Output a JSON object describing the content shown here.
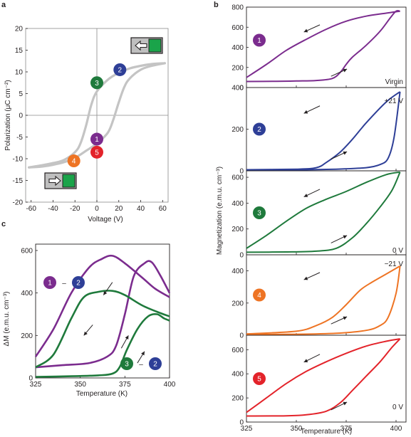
{
  "colors": {
    "1": "#7b2c8e",
    "2": "#2e3f97",
    "3": "#1f7a3c",
    "4": "#ee7424",
    "5": "#e3232a",
    "loop_gray": "#c4c4c4",
    "axis": "#231f20",
    "box_green": "#1aa44a",
    "box_gray": "#bfbfbf",
    "arrow": "#231f20"
  },
  "panel_letters": [
    "a",
    "b",
    "c"
  ],
  "icons": {
    "state_box_left": "left-arrow-in-box-with-green-block",
    "state_box_right": "right-arrow-in-box-with-green-block",
    "trend_arrow": "direction-arrow"
  },
  "chart_data": [
    {
      "panel": "a",
      "type": "line",
      "xlabel": "Voltage (V)",
      "ylabel": "Polarization (μC cm⁻²)",
      "xlim": [
        -65,
        65
      ],
      "ylim": [
        -20,
        20
      ],
      "xticks": [
        -60,
        -40,
        -20,
        0,
        20,
        40,
        60
      ],
      "yticks": [
        -20,
        -15,
        -10,
        -5,
        0,
        5,
        10,
        15,
        20
      ],
      "grid": false,
      "zero_lines": true,
      "series": [
        {
          "role": "upper-branch",
          "x": [
            62,
            50,
            40,
            30,
            20,
            10,
            0,
            -5,
            -10,
            -15,
            -20,
            -30,
            -40,
            -50,
            -62
          ],
          "y": [
            12,
            11.8,
            11.4,
            10.8,
            9.8,
            8.2,
            5.5,
            2.5,
            -2.5,
            -6.5,
            -8.5,
            -10.3,
            -11,
            -11.5,
            -12
          ]
        },
        {
          "role": "lower-branch",
          "x": [
            -62,
            -50,
            -40,
            -30,
            -20,
            -10,
            0,
            10,
            15,
            20,
            25,
            30,
            40,
            50,
            62
          ],
          "y": [
            -12,
            -11.8,
            -11.4,
            -10.8,
            -9.8,
            -8.2,
            -6.5,
            -4,
            -1,
            3,
            6.5,
            8.5,
            10.5,
            11.4,
            12
          ]
        }
      ],
      "states": [
        {
          "label": "1",
          "x": 0,
          "y": -5.5
        },
        {
          "label": "2",
          "x": 21,
          "y": 10.5
        },
        {
          "label": "3",
          "x": 0,
          "y": 7.5
        },
        {
          "label": "4",
          "x": -21,
          "y": -10.5
        },
        {
          "label": "5",
          "x": 0,
          "y": -8.5
        }
      ]
    },
    {
      "panel": "b",
      "type": "line",
      "xlabel": "Temperature (K)",
      "ylabel": "Magnetization (e.m.u. cm⁻³)",
      "xlim": [
        325,
        405
      ],
      "xticks": [
        325,
        350,
        375,
        400
      ],
      "subplots": [
        {
          "state": "1",
          "label": "Virgin",
          "ylim": [
            0,
            800
          ],
          "yticks": [
            0,
            200,
            400,
            600,
            800
          ],
          "warming": {
            "x": [
              325,
              340,
              350,
              360,
              368,
              372,
              375,
              378,
              385,
              392,
              397,
              400,
              402
            ],
            "y": [
              60,
              62,
              65,
              70,
              90,
              150,
              230,
              300,
              420,
              560,
              690,
              760,
              760
            ]
          },
          "cooling": {
            "x": [
              402,
              395,
              385,
              375,
              365,
              355,
              345,
              335,
              325
            ],
            "y": [
              760,
              740,
              710,
              660,
              580,
              480,
              370,
              230,
              100
            ]
          }
        },
        {
          "state": "2",
          "label": "+21 V",
          "ylim": [
            0,
            400
          ],
          "yticks": [
            0,
            200,
            400
          ],
          "warming": {
            "x": [
              325,
              350,
              370,
              385,
              392,
              396,
              399,
              402
            ],
            "y": [
              5,
              5,
              8,
              15,
              30,
              60,
              160,
              380
            ]
          },
          "cooling": {
            "x": [
              402,
              395,
              385,
              378,
              372,
              365,
              360,
              350,
              325
            ],
            "y": [
              380,
              330,
              230,
              150,
              90,
              40,
              15,
              8,
              5
            ]
          }
        },
        {
          "state": "3",
          "label": "0 V",
          "ylim": [
            0,
            650
          ],
          "yticks": [
            0,
            200,
            400,
            600
          ],
          "warming": {
            "x": [
              325,
              345,
              360,
              370,
              378,
              385,
              392,
              398,
              402
            ],
            "y": [
              20,
              22,
              28,
              50,
              130,
              240,
              370,
              500,
              640
            ]
          },
          "cooling": {
            "x": [
              402,
              395,
              385,
              375,
              365,
              355,
              345,
              335,
              325
            ],
            "y": [
              640,
              620,
              560,
              490,
              430,
              360,
              260,
              150,
              50
            ]
          }
        },
        {
          "state": "4",
          "label": "−21 V",
          "ylim": [
            0,
            500
          ],
          "yticks": [
            0,
            200,
            400
          ],
          "warming": {
            "x": [
              325,
              350,
              370,
              385,
              392,
              396,
              400,
              402
            ],
            "y": [
              5,
              6,
              12,
              30,
              60,
              110,
              260,
              430
            ]
          },
          "cooling": {
            "x": [
              402,
              395,
              388,
              382,
              375,
              368,
              360,
              350,
              325
            ],
            "y": [
              430,
              380,
              330,
              280,
              190,
              110,
              60,
              25,
              8
            ]
          }
        },
        {
          "state": "5",
          "label": "0 V",
          "ylim": [
            0,
            720
          ],
          "yticks": [
            0,
            200,
            400,
            600
          ],
          "warming": {
            "x": [
              325,
              345,
              355,
              365,
              372,
              378,
              385,
              392,
              398,
              402
            ],
            "y": [
              50,
              52,
              60,
              90,
              160,
              260,
              380,
              500,
              620,
              690
            ]
          },
          "cooling": {
            "x": [
              402,
              395,
              385,
              375,
              365,
              355,
              345,
              335,
              325
            ],
            "y": [
              690,
              670,
              630,
              570,
              500,
              420,
              320,
              200,
              80
            ]
          }
        }
      ]
    },
    {
      "panel": "c",
      "type": "line",
      "xlabel": "Temperature (K)",
      "ylabel": "ΔM (e.m.u. cm⁻³)",
      "xlim": [
        325,
        400
      ],
      "ylim": [
        0,
        630
      ],
      "xticks": [
        325,
        350,
        375,
        400
      ],
      "yticks": [
        0,
        200,
        400,
        600
      ],
      "series": [
        {
          "name": "1 − 2 cooling",
          "color_key": "1",
          "x": [
            325,
            335,
            345,
            355,
            362,
            368,
            375,
            385,
            392,
            400
          ],
          "y": [
            100,
            230,
            400,
            520,
            560,
            575,
            540,
            470,
            420,
            380
          ]
        },
        {
          "name": "1 − 2 warming",
          "color_key": "1",
          "x": [
            325,
            340,
            355,
            365,
            370,
            375,
            380,
            386,
            390,
            395,
            400
          ],
          "y": [
            50,
            60,
            70,
            100,
            150,
            300,
            480,
            540,
            545,
            480,
            400
          ]
        },
        {
          "name": "3 − 2 cooling",
          "color_key": "3",
          "x": [
            325,
            335,
            345,
            352,
            360,
            368,
            375,
            385,
            395,
            400
          ],
          "y": [
            50,
            110,
            280,
            380,
            405,
            410,
            390,
            340,
            305,
            290
          ]
        },
        {
          "name": "3 − 2 warming",
          "color_key": "3",
          "x": [
            325,
            345,
            360,
            368,
            372,
            376,
            382,
            388,
            393,
            397,
            400
          ],
          "y": [
            5,
            8,
            12,
            20,
            50,
            130,
            230,
            290,
            300,
            280,
            270
          ]
        }
      ],
      "labels": [
        {
          "a": "1",
          "b": "2",
          "sep": "–"
        },
        {
          "a": "3",
          "b": "2",
          "sep": "–"
        }
      ]
    }
  ]
}
